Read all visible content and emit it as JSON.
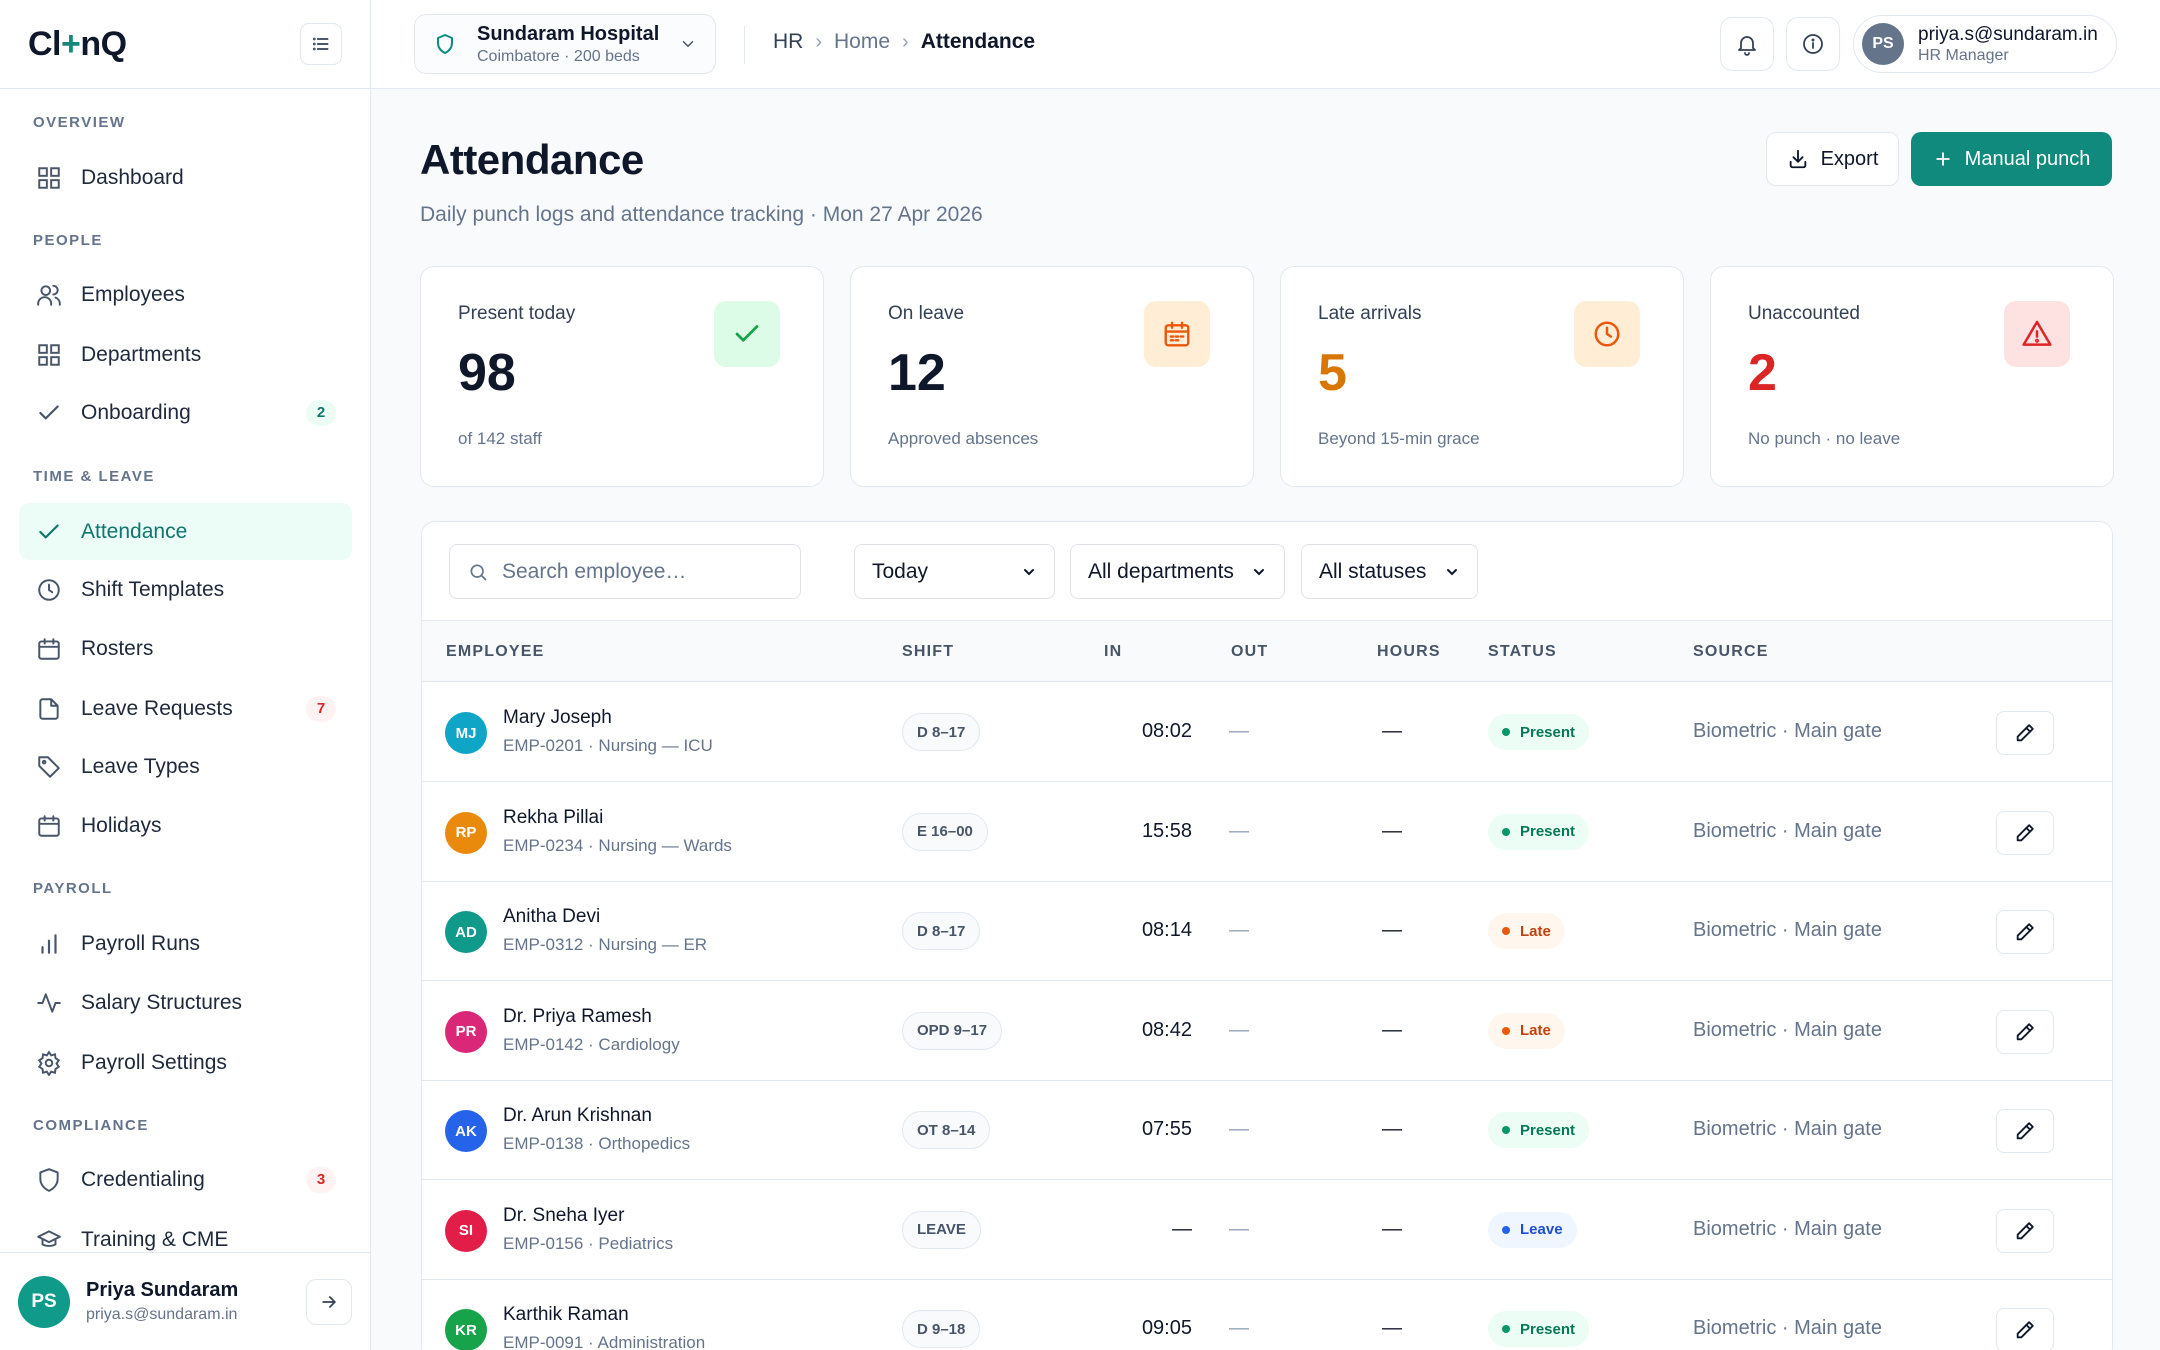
{
  "brand": {
    "logo_left": "Cl",
    "logo_plus": "+",
    "logo_right": "nQ"
  },
  "sidebar": {
    "sections": [
      {
        "label": "OVERVIEW"
      },
      {
        "label": "PEOPLE"
      },
      {
        "label": "TIME & LEAVE"
      },
      {
        "label": "PAYROLL"
      },
      {
        "label": "COMPLIANCE"
      }
    ],
    "items": [
      {
        "label": "Dashboard",
        "icon": "grid-icon"
      },
      {
        "label": "Employees",
        "icon": "users-icon"
      },
      {
        "label": "Departments",
        "icon": "grid-icon"
      },
      {
        "label": "Onboarding",
        "icon": "check-icon",
        "badge": "2"
      },
      {
        "label": "Attendance",
        "icon": "check-icon",
        "active": true
      },
      {
        "label": "Shift Templates",
        "icon": "clock-icon"
      },
      {
        "label": "Rosters",
        "icon": "calendar-icon"
      },
      {
        "label": "Leave Requests",
        "icon": "file-icon",
        "badge": "7"
      },
      {
        "label": "Leave Types",
        "icon": "tag-icon"
      },
      {
        "label": "Holidays",
        "icon": "calendar-icon"
      },
      {
        "label": "Payroll Runs",
        "icon": "bar-chart-icon"
      },
      {
        "label": "Salary Structures",
        "icon": "activity-icon"
      },
      {
        "label": "Payroll Settings",
        "icon": "gear-icon"
      },
      {
        "label": "Credentialing",
        "icon": "shield-icon",
        "badge": "3"
      },
      {
        "label": "Training & CME",
        "icon": "graduation-cap-icon"
      }
    ],
    "footer": {
      "initials": "PS",
      "name": "Priya Sundaram",
      "email": "priya.s@sundaram.in"
    }
  },
  "topbar": {
    "hospital": {
      "name": "Sundaram Hospital",
      "sub": "Coimbatore · 200 beds"
    },
    "breadcrumb": [
      "HR",
      "Home",
      "Attendance"
    ],
    "user": {
      "initials": "PS",
      "email": "priya.s@sundaram.in",
      "role": "HR Manager"
    }
  },
  "page": {
    "title": "Attendance",
    "subtitle": "Daily punch logs and attendance tracking · Mon 27 Apr 2026",
    "export_label": "Export",
    "manual_label": "Manual punch"
  },
  "stats": [
    {
      "label": "Present today",
      "value": "98",
      "note": "of 142 staff",
      "color": "#0f172a",
      "icon": "check-icon"
    },
    {
      "label": "On leave",
      "value": "12",
      "note": "Approved absences",
      "color": "#0f172a",
      "icon": "calendar-icon"
    },
    {
      "label": "Late arrivals",
      "value": "5",
      "note": "Beyond 15-min grace",
      "color": "#d97706",
      "icon": "clock-icon"
    },
    {
      "label": "Unaccounted",
      "value": "2",
      "note": "No punch · no leave",
      "color": "#dc2626",
      "icon": "alert-triangle-icon"
    }
  ],
  "filters": {
    "search_placeholder": "Search employee…",
    "date": "Today",
    "department": "All departments",
    "status": "All statuses"
  },
  "table": {
    "columns": [
      "EMPLOYEE",
      "SHIFT",
      "IN",
      "OUT",
      "HOURS",
      "STATUS",
      "SOURCE"
    ],
    "rows": [
      {
        "initials": "MJ",
        "color": "#0ea5c6",
        "name": "Mary Joseph",
        "meta": "EMP-0201 · Nursing — ICU",
        "shift": "D 8–17",
        "in": "08:02",
        "out": "—",
        "hours": "—",
        "status": "Present",
        "source": "Biometric · Main gate"
      },
      {
        "initials": "RP",
        "color": "#ea8a0c",
        "name": "Rekha Pillai",
        "meta": "EMP-0234 · Nursing — Wards",
        "shift": "E 16–00",
        "in": "15:58",
        "out": "—",
        "hours": "—",
        "status": "Present",
        "source": "Biometric · Main gate"
      },
      {
        "initials": "AD",
        "color": "#0f9a8a",
        "name": "Anitha Devi",
        "meta": "EMP-0312 · Nursing — ER",
        "shift": "D 8–17",
        "in": "08:14",
        "out": "—",
        "hours": "—",
        "status": "Late",
        "source": "Biometric · Main gate"
      },
      {
        "initials": "PR",
        "color": "#db2777",
        "name": "Dr. Priya Ramesh",
        "meta": "EMP-0142 · Cardiology",
        "shift": "OPD 9–17",
        "in": "08:42",
        "out": "—",
        "hours": "—",
        "status": "Late",
        "source": "Biometric · Main gate"
      },
      {
        "initials": "AK",
        "color": "#2563eb",
        "name": "Dr. Arun Krishnan",
        "meta": "EMP-0138 · Orthopedics",
        "shift": "OT 8–14",
        "in": "07:55",
        "out": "—",
        "hours": "—",
        "status": "Present",
        "source": "Biometric · Main gate"
      },
      {
        "initials": "SI",
        "color": "#e11d48",
        "name": "Dr. Sneha Iyer",
        "meta": "EMP-0156 · Pediatrics",
        "shift": "LEAVE",
        "in": "—",
        "out": "—",
        "hours": "—",
        "status": "Leave",
        "source": "Biometric · Main gate"
      },
      {
        "initials": "KR",
        "color": "#16a34a",
        "name": "Karthik Raman",
        "meta": "EMP-0091 · Administration",
        "shift": "D 9–18",
        "in": "09:05",
        "out": "—",
        "hours": "—",
        "status": "Present",
        "source": "Biometric · Main gate"
      }
    ]
  }
}
